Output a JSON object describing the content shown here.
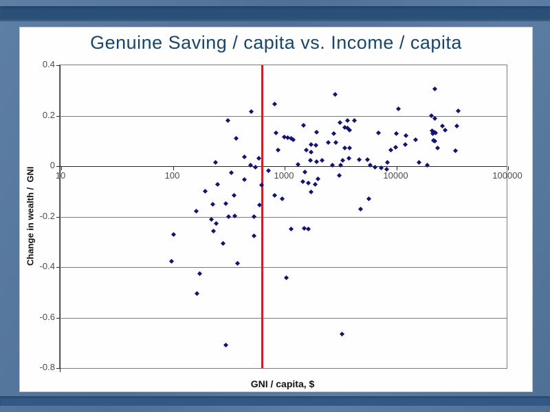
{
  "slide": {
    "title": "Genuine Saving / capita vs. Income / capita"
  },
  "chart_data": {
    "type": "scatter",
    "title": "Genuine Saving / capita vs. Income / capita",
    "xlabel": "GNI / capita, $",
    "ylabel": "Change in wealth /  GNI",
    "x_scale": "log",
    "xlim": [
      10,
      100000
    ],
    "ylim": [
      -0.8,
      0.4
    ],
    "x_ticks": [
      10,
      100,
      1000,
      10000,
      100000
    ],
    "y_ticks": [
      0.4,
      0.2,
      0,
      -0.2,
      -0.4,
      -0.6,
      -0.8
    ],
    "grid": "horizontal",
    "legend": false,
    "marker": "diamond",
    "marker_color": "#12127e",
    "reference_line": {
      "axis": "x",
      "value": 630,
      "color": "#ef1020"
    },
    "points": [
      [
        500,
        0.215
      ],
      [
        820,
        0.245
      ],
      [
        310,
        0.18
      ],
      [
        370,
        0.11
      ],
      [
        840,
        0.133
      ],
      [
        990,
        0.117
      ],
      [
        1060,
        0.112
      ],
      [
        1140,
        0.109
      ],
      [
        1200,
        0.106
      ],
      [
        870,
        0.065
      ],
      [
        435,
        0.038
      ],
      [
        585,
        0.03
      ],
      [
        240,
        0.014
      ],
      [
        495,
        0.003
      ],
      [
        545,
        -0.003
      ],
      [
        715,
        -0.019
      ],
      [
        335,
        -0.027
      ],
      [
        435,
        -0.054
      ],
      [
        620,
        -0.076
      ],
      [
        250,
        -0.071
      ],
      [
        195,
        -0.098
      ],
      [
        355,
        -0.117
      ],
      [
        820,
        -0.117
      ],
      [
        945,
        -0.128
      ],
      [
        227,
        -0.152
      ],
      [
        297,
        -0.147
      ],
      [
        600,
        -0.155
      ],
      [
        162,
        -0.177
      ],
      [
        315,
        -0.199
      ],
      [
        360,
        -0.196
      ],
      [
        530,
        -0.201
      ],
      [
        220,
        -0.21
      ],
      [
        244,
        -0.226
      ],
      [
        230,
        -0.256
      ],
      [
        101,
        -0.27
      ],
      [
        535,
        -0.275
      ],
      [
        280,
        -0.307
      ],
      [
        97,
        -0.378
      ],
      [
        378,
        -0.384
      ],
      [
        173,
        -0.427
      ],
      [
        164,
        -0.506
      ],
      [
        297,
        -0.71
      ],
      [
        1040,
        -0.443
      ],
      [
        3270,
        -0.664
      ],
      [
        1140,
        -0.25
      ],
      [
        1500,
        -0.245
      ],
      [
        1620,
        -0.248
      ],
      [
        22000,
        0.307
      ],
      [
        2850,
        0.283
      ],
      [
        10400,
        0.226
      ],
      [
        35600,
        0.22
      ],
      [
        20600,
        0.201
      ],
      [
        22000,
        0.188
      ],
      [
        1470,
        0.163
      ],
      [
        3140,
        0.174
      ],
      [
        3670,
        0.182
      ],
      [
        4230,
        0.18
      ],
      [
        3470,
        0.155
      ],
      [
        3670,
        0.15
      ],
      [
        3830,
        0.144
      ],
      [
        1940,
        0.136
      ],
      [
        2770,
        0.128
      ],
      [
        6900,
        0.131
      ],
      [
        25800,
        0.158
      ],
      [
        27300,
        0.144
      ],
      [
        34700,
        0.158
      ],
      [
        21000,
        0.139
      ],
      [
        21800,
        0.136
      ],
      [
        22300,
        0.131
      ],
      [
        21300,
        0.128
      ],
      [
        10000,
        0.128
      ],
      [
        12200,
        0.122
      ],
      [
        14900,
        0.106
      ],
      [
        21400,
        0.103
      ],
      [
        22100,
        0.098
      ],
      [
        1730,
        0.087
      ],
      [
        1910,
        0.082
      ],
      [
        2470,
        0.093
      ],
      [
        2880,
        0.095
      ],
      [
        1570,
        0.063
      ],
      [
        1730,
        0.057
      ],
      [
        3470,
        0.073
      ],
      [
        3830,
        0.071
      ],
      [
        8930,
        0.065
      ],
      [
        9860,
        0.076
      ],
      [
        12000,
        0.087
      ],
      [
        23300,
        0.073
      ],
      [
        33700,
        0.06
      ],
      [
        1310,
        0.008
      ],
      [
        1690,
        0.022
      ],
      [
        1940,
        0.019
      ],
      [
        2170,
        0.022
      ],
      [
        3320,
        0.022
      ],
      [
        3780,
        0.03
      ],
      [
        4660,
        0.027
      ],
      [
        5530,
        0.027
      ],
      [
        5850,
        0.005
      ],
      [
        6450,
        -0.003
      ],
      [
        8320,
        0.016
      ],
      [
        15900,
        0.016
      ],
      [
        18900,
        0.005
      ],
      [
        2690,
        0.003
      ],
      [
        3180,
        0.003
      ],
      [
        1510,
        -0.022
      ],
      [
        3100,
        -0.038
      ],
      [
        7330,
        -0.008
      ],
      [
        8200,
        -0.011
      ],
      [
        1450,
        -0.06
      ],
      [
        1640,
        -0.068
      ],
      [
        1890,
        -0.071
      ],
      [
        2000,
        -0.049
      ],
      [
        1730,
        -0.101
      ],
      [
        5690,
        -0.128
      ],
      [
        4800,
        -0.169
      ]
    ]
  }
}
